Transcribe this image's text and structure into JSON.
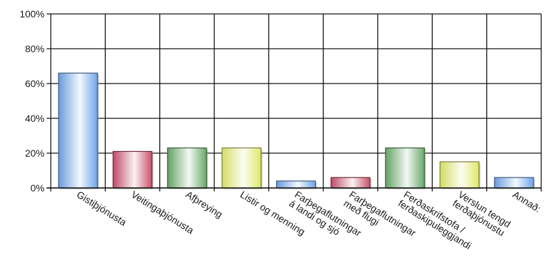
{
  "chart_data": {
    "type": "bar",
    "title": "",
    "xlabel": "",
    "ylabel": "",
    "ylim": [
      0,
      100
    ],
    "yticks": [
      "0%",
      "20%",
      "40%",
      "60%",
      "80%",
      "100%"
    ],
    "grid": true,
    "categories": [
      "Gistiþjónusta",
      "Veitingaþjónusta",
      "Afþreying",
      "Listir og menning",
      "Farþegaflutningar á landi og sjó",
      "Farþegaflutningar með flugi",
      "Ferðaskrifstofa / ferðaskipuleggjandi",
      "Verslun tengd ferðaþjónustu",
      "Annað:"
    ],
    "values": [
      66,
      21,
      23,
      23,
      4,
      6,
      23,
      15,
      6
    ],
    "bar_colors": [
      "#6fa3e8",
      "#c8506a",
      "#6aa86a",
      "#dfe86a",
      "#6fa3e8",
      "#c8506a",
      "#6aa86a",
      "#dfe86a",
      "#6fa3e8"
    ]
  }
}
